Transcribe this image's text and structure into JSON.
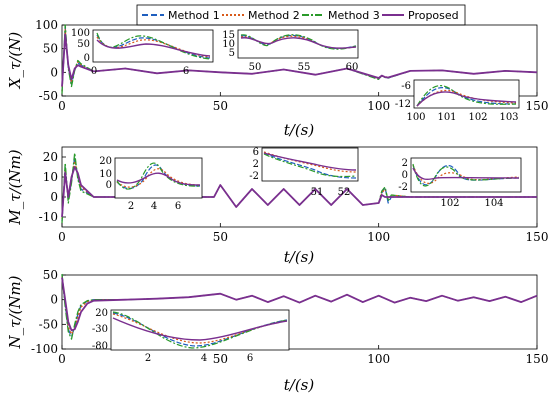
{
  "legend": {
    "entries": [
      {
        "label": "Method 1",
        "color": "#1f5fbf",
        "dash": "6,3"
      },
      {
        "label": "Method 2",
        "color": "#d85a1a",
        "dash": "2,2"
      },
      {
        "label": "Method 3",
        "color": "#2a9a2a",
        "dash": "7,2,2,2"
      },
      {
        "label": "Proposed",
        "color": "#7a2f8f",
        "dash": ""
      }
    ]
  },
  "chart_data": [
    {
      "type": "line",
      "ylabel": "X_τ/(N)",
      "xlabel": "t/(s)",
      "xlim": [
        0,
        150
      ],
      "ylim": [
        -50,
        100
      ],
      "xticks": [
        "0",
        "50",
        "100",
        "150"
      ],
      "yticks": [
        "-50",
        "0",
        "50",
        "100"
      ],
      "series": [
        {
          "name": "Method 1",
          "x": [
            0,
            1,
            2,
            3,
            4,
            5,
            6,
            10,
            20,
            30,
            40,
            50,
            60,
            70,
            80,
            90,
            100,
            101,
            102,
            103,
            110,
            120,
            130,
            140,
            150
          ],
          "y": [
            -40,
            95,
            10,
            -25,
            5,
            20,
            15,
            2,
            8,
            -2,
            4,
            0,
            -3,
            6,
            -5,
            8,
            -14,
            -7,
            -10,
            -12,
            3,
            4,
            -3,
            3,
            0
          ]
        },
        {
          "name": "Method 2",
          "x": [
            0,
            1,
            2,
            3,
            4,
            5,
            6,
            10,
            20,
            30,
            40,
            50,
            60,
            70,
            80,
            90,
            100,
            101,
            102,
            103,
            110,
            120,
            130,
            140,
            150
          ],
          "y": [
            -40,
            90,
            12,
            -22,
            6,
            22,
            16,
            2,
            8,
            -2,
            4,
            0,
            -3,
            6,
            -5,
            8,
            -13,
            -8,
            -9,
            -11,
            3,
            4,
            -3,
            3,
            0
          ]
        },
        {
          "name": "Method 3",
          "x": [
            0,
            1,
            2,
            3,
            4,
            5,
            6,
            10,
            20,
            30,
            40,
            50,
            60,
            70,
            80,
            90,
            100,
            101,
            102,
            103,
            110,
            120,
            130,
            140,
            150
          ],
          "y": [
            -45,
            100,
            8,
            -30,
            4,
            25,
            18,
            2,
            8,
            -2,
            4,
            0,
            -3,
            6,
            -5,
            8,
            -15,
            -7,
            -11,
            -12,
            3,
            4,
            -3,
            3,
            0
          ]
        },
        {
          "name": "Proposed",
          "x": [
            0,
            1,
            2,
            3,
            4,
            5,
            6,
            10,
            20,
            30,
            40,
            50,
            60,
            70,
            80,
            90,
            100,
            101,
            102,
            103,
            110,
            120,
            130,
            140,
            150
          ],
          "y": [
            -30,
            80,
            15,
            -15,
            8,
            15,
            12,
            2,
            8,
            -2,
            4,
            0,
            -3,
            6,
            -5,
            8,
            -12,
            -7,
            -10,
            -11,
            3,
            4,
            -3,
            3,
            0
          ]
        }
      ],
      "insets": [
        {
          "xticks": [
            "0",
            "6"
          ],
          "yticks": [
            "0",
            "50",
            "100"
          ]
        },
        {
          "xticks": [
            "50",
            "55",
            "60"
          ],
          "yticks": [
            "5",
            "10",
            "15"
          ]
        },
        {
          "xticks": [
            "100",
            "101",
            "102",
            "103"
          ],
          "yticks": [
            "-6",
            "-12"
          ]
        }
      ]
    },
    {
      "type": "line",
      "ylabel": "M_τ/(Nm)",
      "xlabel": "t/(s)",
      "xlim": [
        0,
        150
      ],
      "ylim": [
        -15,
        25
      ],
      "xticks": [
        "0",
        "50",
        "100",
        "150"
      ],
      "yticks": [
        "-10",
        "0",
        "10",
        "20"
      ],
      "series": [
        {
          "name": "Method 1",
          "x": [
            0,
            1,
            2,
            3,
            4,
            5,
            6,
            10,
            30,
            48,
            50,
            55,
            60,
            65,
            70,
            75,
            80,
            85,
            90,
            95,
            100,
            101,
            102,
            103,
            104,
            110,
            130,
            150
          ],
          "y": [
            -12,
            15,
            -2,
            8,
            20,
            10,
            4,
            0,
            0,
            0,
            6,
            -5,
            4,
            -4,
            4,
            -4,
            4,
            -4,
            4,
            -4,
            -3,
            2,
            5,
            -3,
            0,
            0,
            0,
            0
          ]
        },
        {
          "name": "Method 2",
          "x": [
            0,
            1,
            2,
            3,
            4,
            5,
            6,
            10,
            30,
            48,
            50,
            55,
            60,
            65,
            70,
            75,
            80,
            85,
            90,
            95,
            100,
            101,
            102,
            103,
            104,
            110,
            130,
            150
          ],
          "y": [
            -11,
            13,
            -1,
            9,
            18,
            11,
            5,
            0,
            0,
            0,
            6,
            -5,
            4,
            -4,
            4,
            -4,
            4,
            -4,
            4,
            -4,
            -3,
            2,
            4,
            -1,
            1,
            0,
            0,
            0
          ]
        },
        {
          "name": "Method 3",
          "x": [
            0,
            1,
            2,
            3,
            4,
            5,
            6,
            10,
            30,
            48,
            50,
            55,
            60,
            65,
            70,
            75,
            80,
            85,
            90,
            95,
            100,
            101,
            102,
            103,
            104,
            110,
            130,
            150
          ],
          "y": [
            -13,
            17,
            -3,
            7,
            22,
            9,
            3,
            0,
            0,
            0,
            6,
            -5,
            4,
            -4,
            4,
            -4,
            4,
            -4,
            4,
            -4,
            -3,
            3,
            5,
            -2,
            1,
            0,
            0,
            0
          ]
        },
        {
          "name": "Proposed",
          "x": [
            0,
            1,
            2,
            3,
            4,
            5,
            6,
            10,
            30,
            48,
            50,
            55,
            60,
            65,
            70,
            75,
            80,
            85,
            90,
            95,
            100,
            101,
            102,
            103,
            104,
            110,
            130,
            150
          ],
          "y": [
            -10,
            12,
            0,
            10,
            15,
            12,
            6,
            0,
            0,
            0,
            6,
            -5,
            4,
            -4,
            4,
            -4,
            4,
            -4,
            4,
            -4,
            -3,
            1,
            0,
            0,
            0,
            0,
            0,
            0
          ]
        }
      ],
      "insets": [
        {
          "xticks": [
            "2",
            "4",
            "6"
          ],
          "yticks": [
            "0",
            "10",
            "20"
          ]
        },
        {
          "xticks": [
            "51",
            "52"
          ],
          "yticks": [
            "-2",
            "2",
            "6"
          ]
        },
        {
          "xticks": [
            "102",
            "104"
          ],
          "yticks": [
            "-2",
            "0",
            "2"
          ]
        }
      ]
    },
    {
      "type": "line",
      "ylabel": "N_τ/(Nm)",
      "xlabel": "t/(s)",
      "xlim": [
        0,
        150
      ],
      "ylim": [
        -100,
        50
      ],
      "xticks": [
        "0",
        "50",
        "100",
        "150"
      ],
      "yticks": [
        "-100",
        "-50",
        "0",
        "50"
      ],
      "series": [
        {
          "name": "Method 1",
          "x": [
            0,
            1,
            2,
            3,
            4,
            5,
            6,
            8,
            10,
            20,
            30,
            40,
            50,
            55,
            60,
            65,
            70,
            75,
            80,
            85,
            90,
            95,
            100,
            105,
            110,
            115,
            120,
            125,
            130,
            135,
            140,
            145,
            150
          ],
          "y": [
            50,
            -10,
            -60,
            -75,
            -55,
            -30,
            -12,
            -3,
            0,
            0,
            2,
            5,
            12,
            0,
            8,
            -5,
            7,
            -6,
            8,
            -4,
            10,
            -5,
            8,
            -6,
            4,
            -3,
            8,
            -2,
            5,
            -3,
            6,
            -5,
            8
          ]
        },
        {
          "name": "Method 2",
          "x": [
            0,
            1,
            2,
            3,
            4,
            5,
            6,
            8,
            10,
            20,
            30,
            40,
            50,
            55,
            60,
            65,
            70,
            75,
            80,
            85,
            90,
            95,
            100,
            105,
            110,
            115,
            120,
            125,
            130,
            135,
            140,
            145,
            150
          ],
          "y": [
            48,
            -5,
            -55,
            -70,
            -58,
            -35,
            -15,
            -4,
            0,
            0,
            2,
            5,
            12,
            0,
            8,
            -5,
            7,
            -6,
            8,
            -4,
            10,
            -5,
            8,
            -6,
            4,
            -3,
            8,
            -2,
            5,
            -3,
            6,
            -5,
            8
          ]
        },
        {
          "name": "Method 3",
          "x": [
            0,
            1,
            2,
            3,
            4,
            5,
            6,
            8,
            10,
            20,
            30,
            40,
            50,
            55,
            60,
            65,
            70,
            75,
            80,
            85,
            90,
            95,
            100,
            105,
            110,
            115,
            120,
            125,
            130,
            135,
            140,
            145,
            150
          ],
          "y": [
            52,
            -15,
            -65,
            -80,
            -50,
            -25,
            -10,
            -2,
            0,
            0,
            2,
            5,
            12,
            0,
            8,
            -5,
            7,
            -6,
            8,
            -4,
            10,
            -5,
            8,
            -6,
            4,
            -3,
            8,
            -2,
            5,
            -3,
            6,
            -5,
            8
          ]
        },
        {
          "name": "Proposed",
          "x": [
            0,
            1,
            2,
            3,
            4,
            5,
            6,
            8,
            10,
            20,
            30,
            40,
            50,
            55,
            60,
            65,
            70,
            75,
            80,
            85,
            90,
            95,
            100,
            105,
            110,
            115,
            120,
            125,
            130,
            135,
            140,
            145,
            150
          ],
          "y": [
            45,
            0,
            -45,
            -62,
            -60,
            -45,
            -25,
            -8,
            -2,
            0,
            2,
            5,
            12,
            0,
            8,
            -5,
            7,
            -6,
            8,
            -4,
            10,
            -5,
            8,
            -6,
            4,
            -3,
            8,
            -2,
            5,
            -3,
            6,
            -5,
            8
          ]
        }
      ],
      "insets": [
        {
          "xticks": [
            "2",
            "4",
            "6"
          ],
          "yticks": [
            "20",
            "-30",
            "-80"
          ]
        }
      ]
    }
  ]
}
